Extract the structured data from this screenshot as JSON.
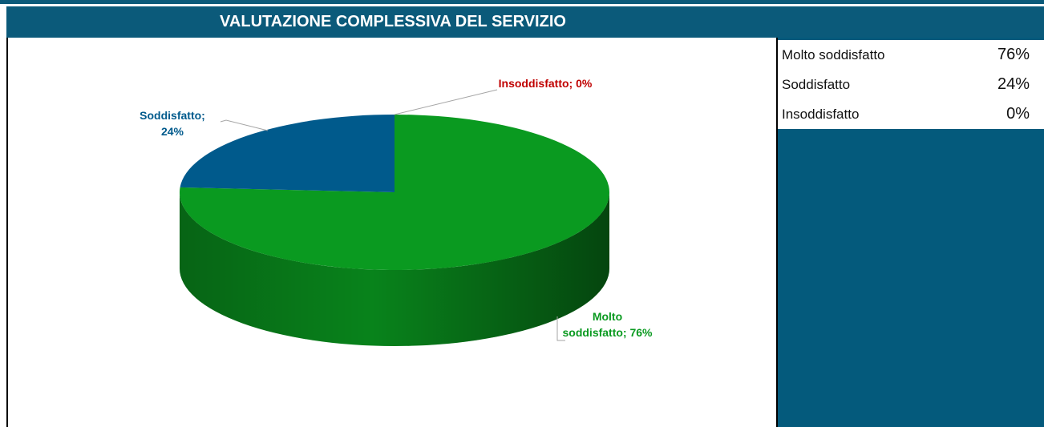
{
  "chart_data": {
    "type": "pie",
    "title": "VALUTAZIONE COMPLESSIVA DEL SERVIZIO",
    "categories": [
      "Molto soddisfatto",
      "Soddisfatto",
      "Insoddisfatto"
    ],
    "values": [
      76,
      24,
      0
    ],
    "value_labels": [
      "Molto soddisfatto; 76%",
      "Soddisfatto; 24%",
      "Insoddisfatto; 0%"
    ],
    "colors": [
      "#0a9a20",
      "#005a8c",
      "#c00000"
    ]
  },
  "table": {
    "rows": [
      [
        "Molto soddisfatto",
        "76%"
      ],
      [
        "Soddisfatto",
        "24%"
      ],
      [
        "Insoddisfatto",
        "0%"
      ]
    ]
  }
}
